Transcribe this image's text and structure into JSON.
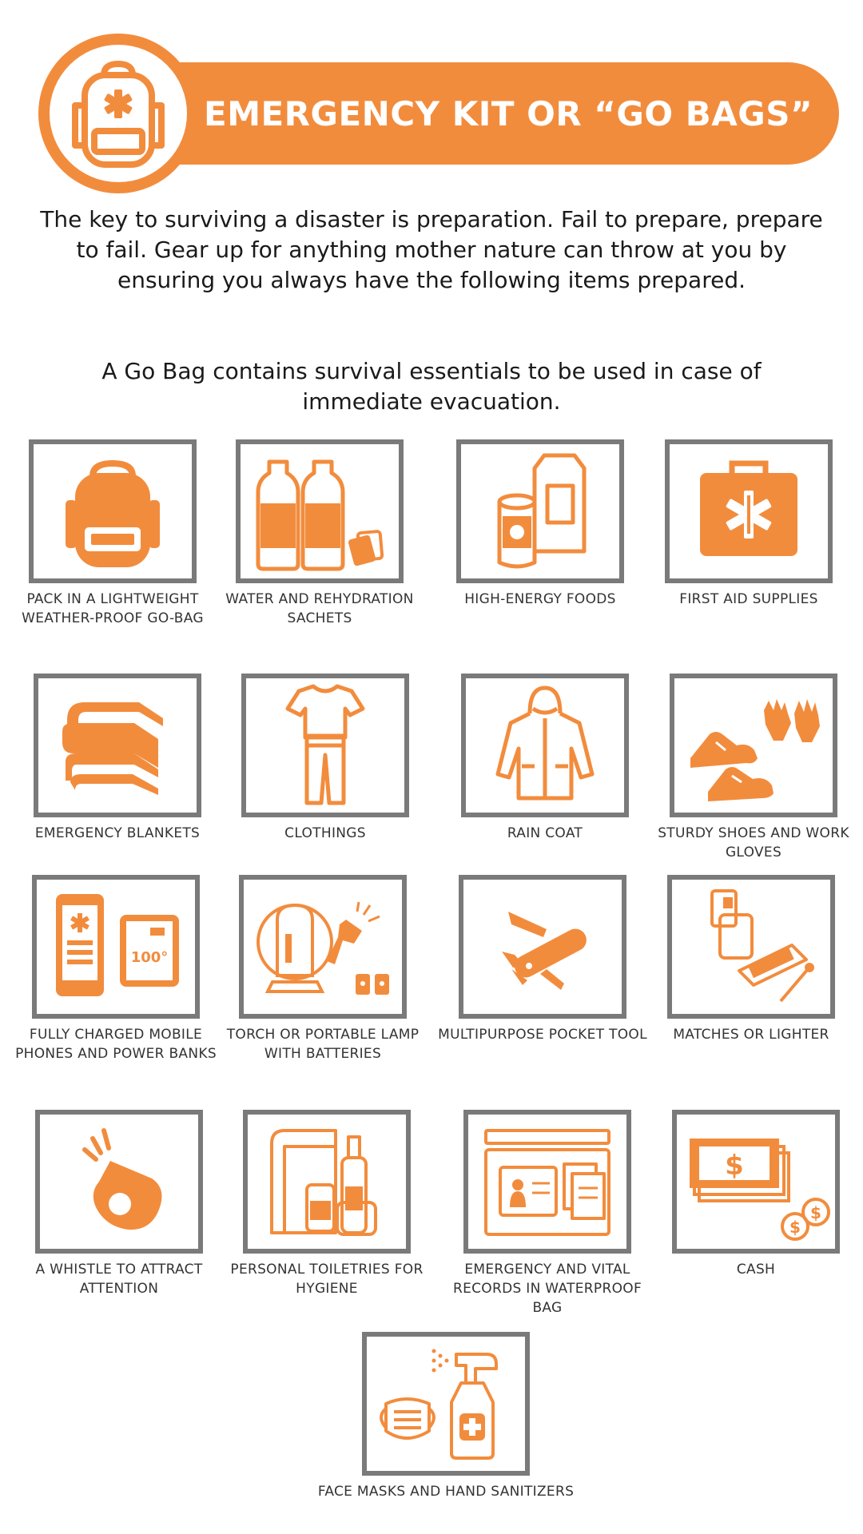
{
  "header": {
    "title": "EMERGENCY KIT OR “GO BAGS”",
    "icon": "backpack-icon",
    "accent_color": "#f28c3d",
    "frame_color": "#7a7a7a"
  },
  "intro": {
    "paragraph1": "The key to surviving a disaster is preparation. Fail to prepare, prepare to fail. Gear up for anything mother nature can throw at you by ensuring you always have the following items prepared.",
    "paragraph2": "A Go Bag contains survival essentials to be used in case of immediate evacuation."
  },
  "items": [
    {
      "label": "PACK IN A LIGHTWEIGHT WEATHER-PROOF GO-BAG",
      "icon": "backpack-icon"
    },
    {
      "label": "WATER AND REHYDRATION SACHETS",
      "icon": "water-bottles-icon"
    },
    {
      "label": "HIGH-ENERGY FOODS",
      "icon": "food-can-carton-icon"
    },
    {
      "label": "FIRST AID SUPPLIES",
      "icon": "first-aid-kit-icon"
    },
    {
      "label": "EMERGENCY BLANKETS",
      "icon": "folded-blankets-icon"
    },
    {
      "label": "CLOTHINGS",
      "icon": "clothes-icon"
    },
    {
      "label": "RAIN COAT",
      "icon": "raincoat-icon"
    },
    {
      "label": "STURDY SHOES AND WORK GLOVES",
      "icon": "shoes-gloves-icon"
    },
    {
      "label": "FULLY CHARGED MOBILE PHONES  AND POWER BANKS",
      "icon": "phone-powerbank-icon",
      "badge": "100°"
    },
    {
      "label": "TORCH OR PORTABLE LAMP WITH BATTERIES",
      "icon": "lamp-torch-icon"
    },
    {
      "label": "MULTIPURPOSE POCKET TOOL",
      "icon": "pocket-knife-icon"
    },
    {
      "label": "MATCHES OR LIGHTER",
      "icon": "matches-lighter-icon"
    },
    {
      "label": "A WHISTLE TO ATTRACT ATTENTION",
      "icon": "whistle-icon"
    },
    {
      "label": "PERSONAL TOILETRIES FOR HYGIENE",
      "icon": "toiletries-icon"
    },
    {
      "label": "EMERGENCY AND VITAL RECORDS IN WATERPROOF BAG",
      "icon": "documents-icon"
    },
    {
      "label": "CASH",
      "icon": "cash-icon"
    },
    {
      "label": "FACE MASKS AND HAND SANITIZERS",
      "icon": "mask-sanitizer-icon"
    }
  ]
}
